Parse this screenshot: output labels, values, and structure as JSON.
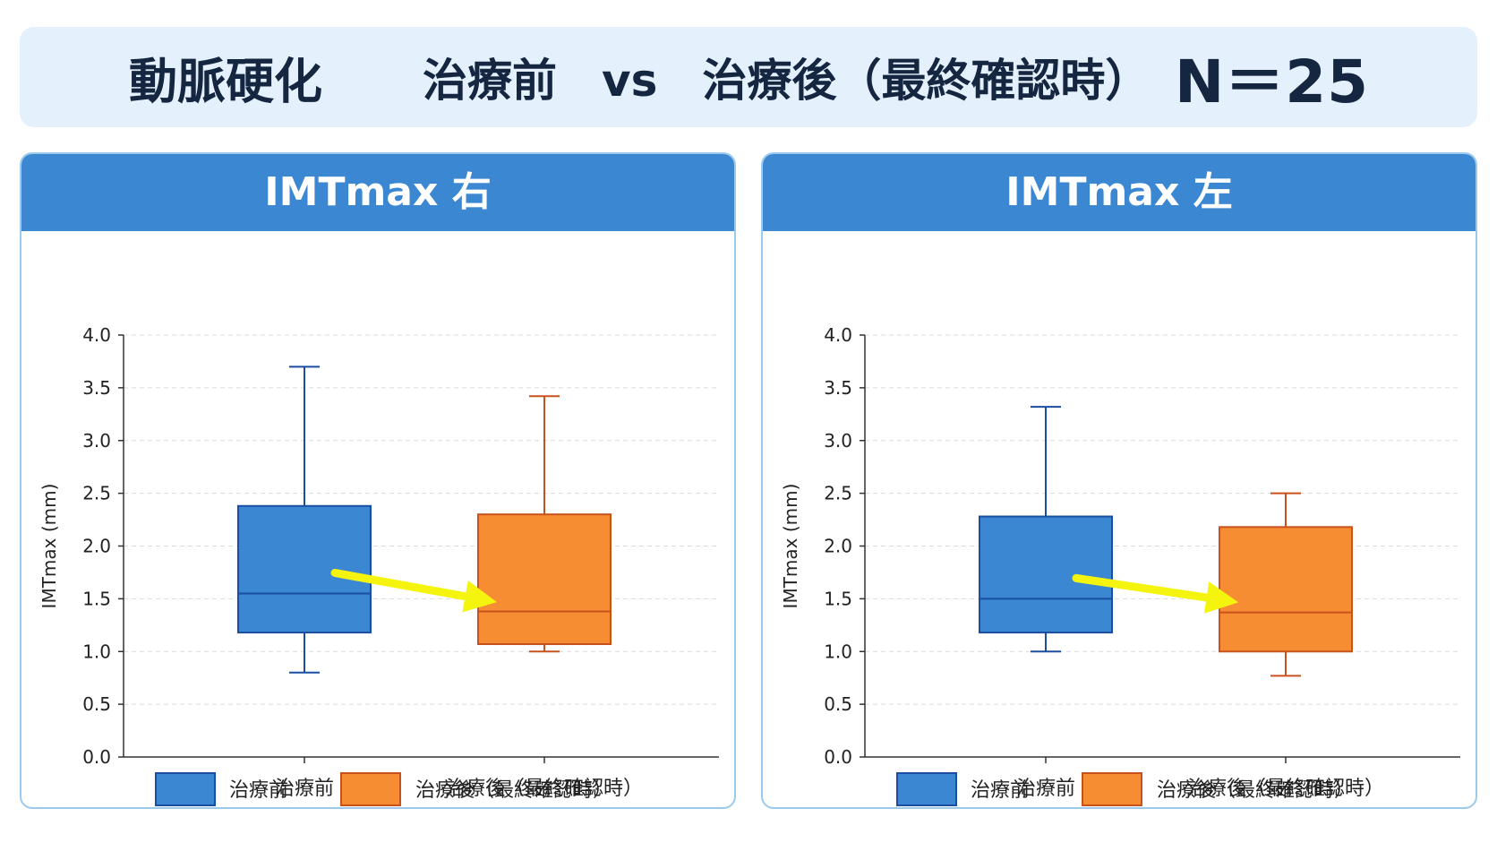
{
  "banner": {
    "disease": "動脈硬化",
    "comparison": "治療前　vs　治療後（最終確認時）",
    "n": "N＝25"
  },
  "colors": {
    "before": "#3b87d2",
    "before_edge": "#1a4ea0",
    "after": "#f68d33",
    "after_edge": "#c9521c",
    "arrow": "#f4f40e",
    "header": "#3b87d2"
  },
  "chart_data": [
    {
      "type": "boxplot",
      "title": "IMTmax 右",
      "ylabel": "IMTmax (mm)",
      "ylim": [
        0,
        4.0
      ],
      "yticks": [
        "0.0",
        "0.5",
        "1.0",
        "1.5",
        "2.0",
        "2.5",
        "3.0",
        "3.5",
        "4.0"
      ],
      "grid": true,
      "categories": [
        "治療前",
        "治療後（最終確認時）"
      ],
      "boxes": [
        {
          "name": "治療前",
          "min": 0.8,
          "q1": 1.18,
          "median": 1.55,
          "q3": 2.38,
          "max": 3.7
        },
        {
          "name": "治療後（最終確認時）",
          "min": 1.0,
          "q1": 1.07,
          "median": 1.38,
          "q3": 2.3,
          "max": 3.42
        }
      ],
      "annotation": "arrow from 治療前 median to 治療後 median",
      "legend": [
        "治療前",
        "治療後（最終確認時）"
      ],
      "legend_position": "bottom"
    },
    {
      "type": "boxplot",
      "title": "IMTmax 左",
      "ylabel": "IMTmax (mm)",
      "ylim": [
        0,
        4.0
      ],
      "yticks": [
        "0.0",
        "0.5",
        "1.0",
        "1.5",
        "2.0",
        "2.5",
        "3.0",
        "3.5",
        "4.0"
      ],
      "grid": true,
      "categories": [
        "治療前",
        "治療後（最終確認時）"
      ],
      "boxes": [
        {
          "name": "治療前",
          "min": 1.0,
          "q1": 1.18,
          "median": 1.5,
          "q3": 2.28,
          "max": 3.32
        },
        {
          "name": "治療後（最終確認時）",
          "min": 0.77,
          "q1": 1.0,
          "median": 1.37,
          "q3": 2.18,
          "max": 2.5
        }
      ],
      "annotation": "arrow from 治療前 median to 治療後 median",
      "legend": [
        "治療前",
        "治療後（最終確認時）"
      ],
      "legend_position": "bottom"
    }
  ]
}
